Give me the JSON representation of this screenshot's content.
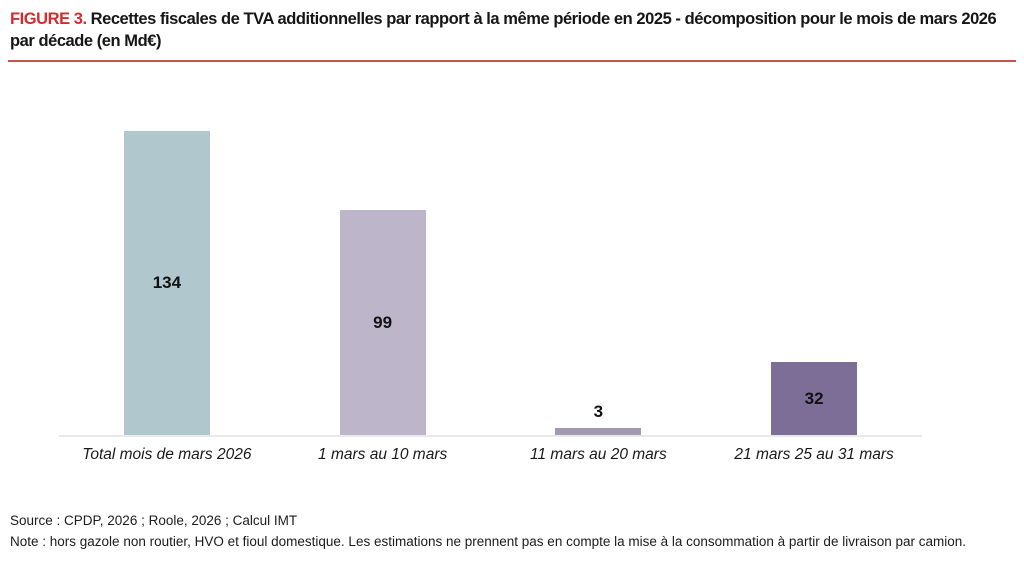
{
  "figure": {
    "label": "FIGURE 3.",
    "title": "Recettes fiscales de TVA additionnelles par rapport à la même période en 2025 - décomposition pour le mois de mars 2026 par décade (en Md€)",
    "accent_color": "#d22d2d",
    "rule_color": "#c9544c"
  },
  "chart_data": {
    "type": "bar",
    "title": "Recettes fiscales de TVA additionnelles par rapport à la même période en 2025 - décomposition pour le mois de mars 2026 par décade (en Md€)",
    "unit": "Md€",
    "categories": [
      "Total mois de mars 2026",
      "1 mars au 10 mars",
      "11 mars au 20 mars",
      "21 mars 25 au 31 mars"
    ],
    "values": [
      134,
      99,
      3,
      32
    ],
    "bar_colors": [
      "#b0c8cd",
      "#bdb5ca",
      "#a39ab1",
      "#7c6e96"
    ],
    "xlabel": "",
    "ylabel": "",
    "ylim": [
      0,
      140
    ],
    "grid": false,
    "legend": "none",
    "axis_line_color": "#e9e9e9",
    "value_labels": "centered inside bar; placed above bar when bar is too short"
  },
  "footer": {
    "source": "Source : CPDP, 2026 ; Roole, 2026 ; Calcul IMT",
    "note": "Note : hors gazole non routier, HVO et fioul domestique. Les estimations ne prennent pas en compte la mise à la consommation à partir de livraison par camion."
  }
}
